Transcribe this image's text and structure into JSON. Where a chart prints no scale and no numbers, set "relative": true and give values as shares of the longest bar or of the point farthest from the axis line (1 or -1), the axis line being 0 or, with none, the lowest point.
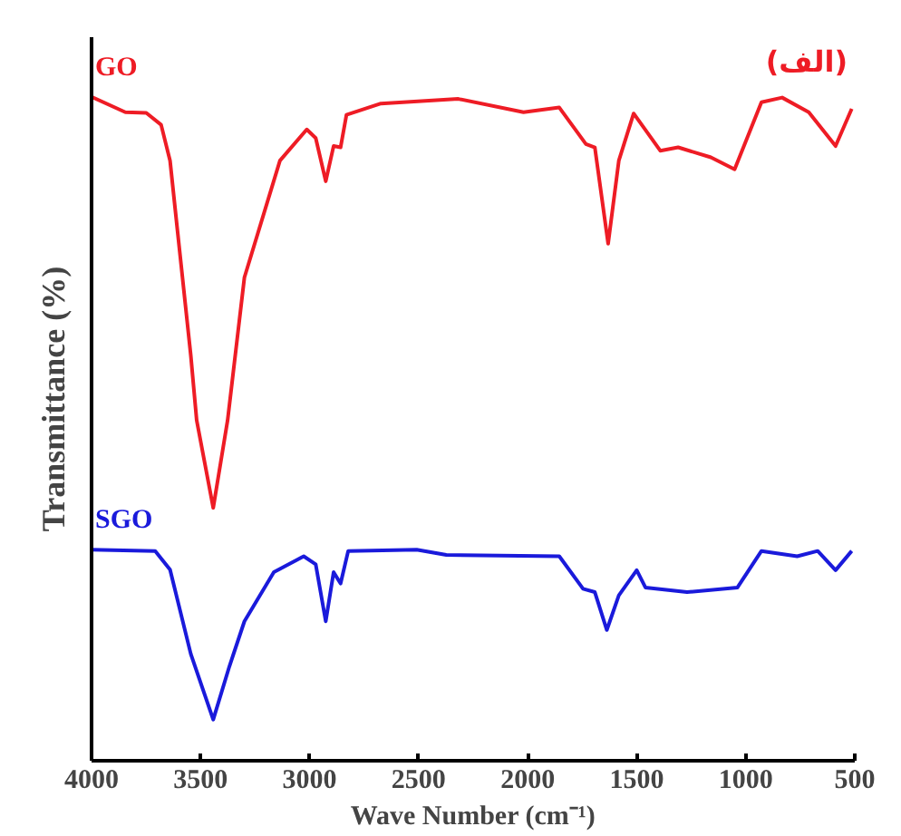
{
  "chart_data": {
    "type": "line",
    "relative": true,
    "xlabel": "Wave Number (cm⁻¹)",
    "ylabel": "Transmittance (%)",
    "annotations": [
      "(الف)"
    ],
    "xlim": [
      4000,
      500
    ],
    "xticks": [
      4000,
      3500,
      3000,
      2500,
      2000,
      1500,
      1000,
      500
    ],
    "grid": false,
    "series": [
      {
        "name": "GO",
        "color": "#ee1c25",
        "x": [
          4000,
          3845,
          3749,
          3681,
          3640,
          3599,
          3545,
          3518,
          3442,
          3376,
          3299,
          3136,
          3013,
          2972,
          2926,
          2890,
          2858,
          2831,
          2673,
          2318,
          2019,
          1855,
          1733,
          1692,
          1631,
          1582,
          1514,
          1392,
          1310,
          1160,
          1051,
          928,
          833,
          711,
          588,
          514
        ],
        "values": [
          1.0,
          0.977,
          0.976,
          0.958,
          0.904,
          0.777,
          0.611,
          0.513,
          0.381,
          0.513,
          0.728,
          0.904,
          0.951,
          0.938,
          0.873,
          0.926,
          0.924,
          0.973,
          0.99,
          0.997,
          0.977,
          0.984,
          0.929,
          0.924,
          0.779,
          0.904,
          0.975,
          0.919,
          0.924,
          0.909,
          0.891,
          0.992,
          0.999,
          0.977,
          0.926,
          0.982
        ]
      },
      {
        "name": "SGO",
        "color": "#1a1adb",
        "x": [
          4000,
          3708,
          3640,
          3545,
          3442,
          3368,
          3299,
          3164,
          3027,
          2972,
          2926,
          2890,
          2858,
          2823,
          2509,
          2373,
          1855,
          1746,
          1692,
          1637,
          1582,
          1500,
          1460,
          1269,
          1038,
          928,
          764,
          670,
          588,
          514
        ],
        "values": [
          0.318,
          0.316,
          0.288,
          0.161,
          0.062,
          0.142,
          0.21,
          0.284,
          0.308,
          0.296,
          0.21,
          0.284,
          0.267,
          0.316,
          0.318,
          0.31,
          0.308,
          0.259,
          0.254,
          0.197,
          0.249,
          0.287,
          0.261,
          0.254,
          0.261,
          0.316,
          0.308,
          0.316,
          0.287,
          0.316
        ]
      }
    ]
  }
}
